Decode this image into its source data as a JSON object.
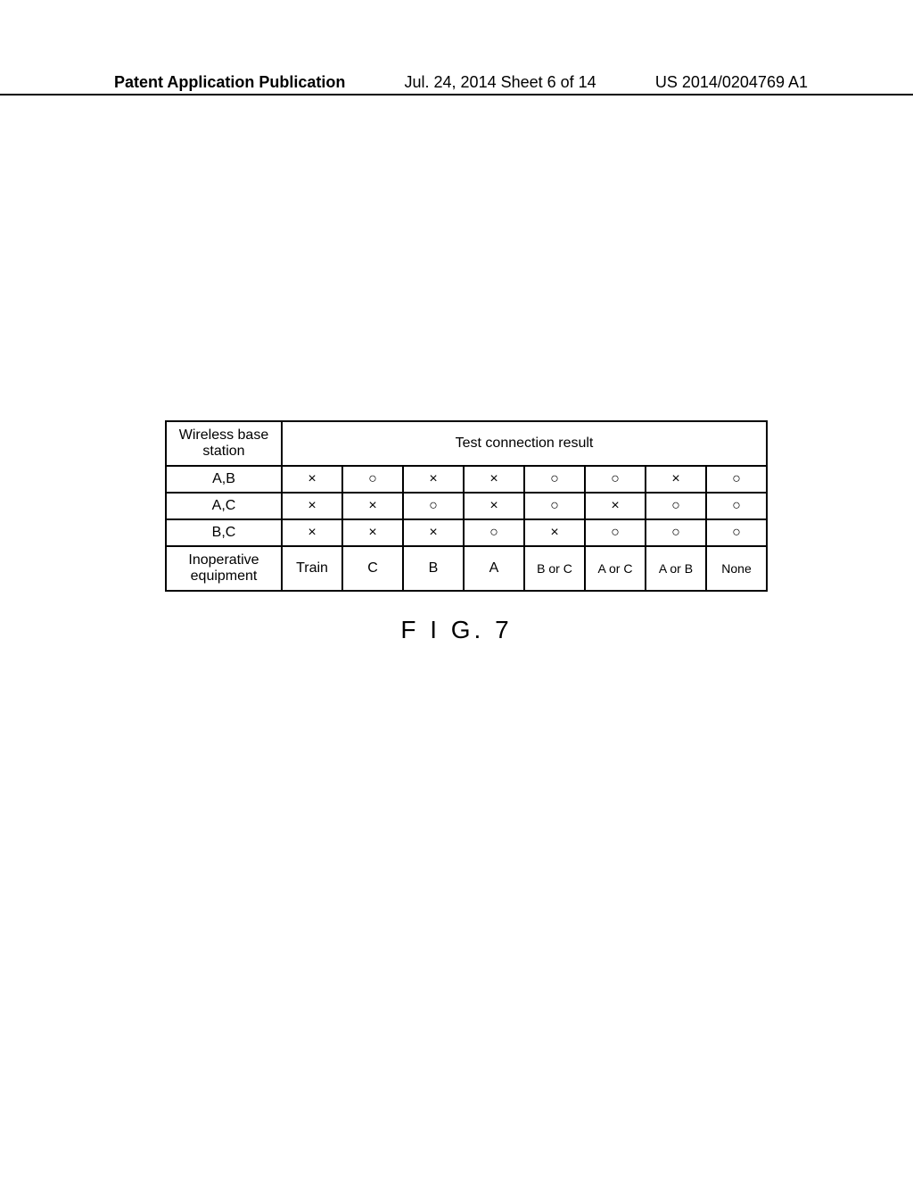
{
  "header": {
    "left": "Patent Application Publication",
    "center": "Jul. 24, 2014  Sheet 6 of 14",
    "right": "US 2014/0204769 A1"
  },
  "table": {
    "header_cell": "Wireless base station",
    "header_span": "Test connection result",
    "rows": [
      {
        "label": "A,B",
        "cells": [
          "×",
          "○",
          "×",
          "×",
          "○",
          "○",
          "×",
          "○"
        ]
      },
      {
        "label": "A,C",
        "cells": [
          "×",
          "×",
          "○",
          "×",
          "○",
          "×",
          "○",
          "○"
        ]
      },
      {
        "label": "B,C",
        "cells": [
          "×",
          "×",
          "×",
          "○",
          "×",
          "○",
          "○",
          "○"
        ]
      }
    ],
    "footer_label": "Inoperative equipment",
    "footer_cells": [
      "Train",
      "C",
      "B",
      "A",
      "B or C",
      "A or C",
      "A or B",
      "None"
    ]
  },
  "figure_caption": "F I G. 7"
}
